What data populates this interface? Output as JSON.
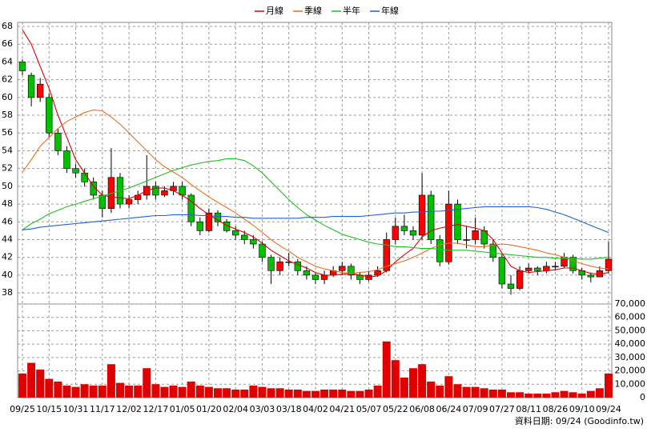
{
  "chart_data": {
    "type": "candlestick",
    "categories": [
      "09/25",
      null,
      null,
      "10/15",
      null,
      null,
      "10/31",
      null,
      null,
      "11/17",
      null,
      null,
      "12/02",
      null,
      null,
      "12/17",
      null,
      null,
      "01/05",
      null,
      null,
      "01/20",
      null,
      null,
      "02/04",
      null,
      null,
      "03/03",
      null,
      null,
      "03/18",
      null,
      null,
      "04/02",
      null,
      null,
      "04/21",
      null,
      null,
      "05/07",
      null,
      null,
      "05/22",
      null,
      null,
      "06/08",
      null,
      null,
      "06/24",
      null,
      null,
      "07/09",
      null,
      null,
      "07/27",
      null,
      null,
      "08/11",
      null,
      null,
      "08/26",
      null,
      null,
      "09/10",
      null,
      null,
      "09/24"
    ],
    "open": [
      64,
      62.5,
      60,
      60,
      56,
      54,
      52,
      51.5,
      50.5,
      49,
      47.5,
      51,
      48,
      48.5,
      49,
      50,
      49,
      49.5,
      50,
      49,
      46,
      45,
      47,
      46,
      45,
      44.5,
      44,
      43.5,
      42,
      40.5,
      41.5,
      41.5,
      40.5,
      40,
      39.5,
      40,
      40.5,
      41,
      40,
      39.5,
      40,
      40.5,
      44,
      45.5,
      45,
      44.5,
      49,
      44,
      41.5,
      48,
      44,
      44,
      45,
      43.5,
      42,
      39,
      38.5,
      40.5,
      40.8,
      40.5,
      41,
      41,
      42,
      40.5,
      40,
      39.8,
      40.5
    ],
    "high": [
      64.3,
      62.8,
      62.2,
      60.5,
      56.5,
      54.5,
      52.5,
      52,
      51,
      49.5,
      54.3,
      51.5,
      49,
      49.5,
      53.5,
      50.5,
      50,
      50.5,
      50.5,
      49.2,
      46.5,
      47.5,
      47.3,
      46.3,
      45.5,
      45,
      44.5,
      43.8,
      42.3,
      42,
      42.5,
      41.8,
      41,
      40.3,
      40.5,
      41,
      41.5,
      41.3,
      40.3,
      40.5,
      41,
      44.8,
      46.5,
      46.8,
      45.5,
      51.5,
      49.5,
      44.5,
      49.5,
      48.5,
      45.5,
      46.5,
      45.5,
      44,
      42.5,
      40,
      41,
      41.3,
      41,
      41.5,
      41.5,
      42.5,
      42.3,
      40.8,
      40.3,
      41,
      43.8
    ],
    "low": [
      62.5,
      59,
      59.5,
      55.5,
      53.5,
      51.5,
      51,
      50,
      48.5,
      46.5,
      47,
      47.5,
      47.5,
      48,
      48.5,
      48.5,
      48.8,
      49,
      48.5,
      45.5,
      44.5,
      44.8,
      45.5,
      44.8,
      44,
      43.5,
      43,
      41.5,
      39,
      40,
      41,
      40,
      39.5,
      39,
      39,
      39.8,
      40,
      39.5,
      39,
      39.3,
      39.8,
      40.3,
      43.5,
      44.5,
      44,
      44,
      43.5,
      41,
      41.2,
      43.5,
      43,
      43.5,
      43,
      41.5,
      38.5,
      37.8,
      38.3,
      40.2,
      40,
      40.2,
      40.5,
      40.8,
      40.2,
      39.5,
      39.2,
      39.8,
      40.2
    ],
    "close": [
      63,
      60,
      61.5,
      56,
      54,
      52,
      51.5,
      50.5,
      49,
      47.5,
      51,
      48,
      48.5,
      49,
      50,
      49,
      49.5,
      50,
      49,
      46,
      45,
      47,
      46,
      45,
      44.5,
      44,
      43.5,
      42,
      40.5,
      41.5,
      41.5,
      40.5,
      40,
      39.5,
      40,
      40.5,
      41,
      40,
      39.5,
      40,
      40.5,
      44,
      45.5,
      45,
      44.5,
      49,
      44,
      41.5,
      48,
      44,
      44,
      45,
      43.5,
      42,
      39,
      38.5,
      40.5,
      40.8,
      40.5,
      41,
      41,
      42,
      40.5,
      40,
      39.8,
      40.5,
      41.8
    ],
    "volume": [
      18000,
      26000,
      21000,
      14000,
      12000,
      9000,
      8000,
      10000,
      9000,
      9000,
      25000,
      11000,
      9000,
      9000,
      22000,
      10000,
      8000,
      9000,
      8000,
      12000,
      9000,
      8000,
      7000,
      7000,
      6000,
      6000,
      9000,
      8000,
      7000,
      7000,
      6000,
      6000,
      5000,
      5000,
      6000,
      6000,
      6000,
      5000,
      5000,
      6000,
      9000,
      42000,
      28000,
      15000,
      22000,
      25000,
      12000,
      9000,
      16000,
      10000,
      8000,
      8000,
      7000,
      6000,
      6000,
      4000,
      4000,
      3000,
      3000,
      3000,
      4000,
      5000,
      4000,
      3000,
      5000,
      7000,
      18000
    ],
    "series": [
      {
        "name": "月線",
        "color": "#e00000",
        "values": [
          67.6,
          66,
          63.5,
          61,
          58,
          55.5,
          53,
          51.5,
          50,
          49,
          48.8,
          48.7,
          48.6,
          49,
          49.5,
          49.8,
          49.8,
          49.5,
          49,
          48.3,
          47.5,
          46.8,
          46.2,
          45.6,
          45.2,
          44.8,
          44.3,
          43.6,
          42.8,
          42.2,
          41.6,
          41.2,
          40.8,
          40.3,
          40,
          40,
          40.1,
          40.2,
          40,
          39.8,
          39.9,
          40.5,
          41.5,
          42.3,
          43,
          44.3,
          45,
          45.3,
          45.5,
          45.7,
          45.5,
          45.3,
          45,
          44,
          42.5,
          41,
          40.5,
          40.3,
          40.4,
          40.5,
          40.6,
          40.8,
          40.8,
          40.5,
          40.2,
          40.1,
          40.3
        ]
      },
      {
        "name": "季線",
        "color": "#e87020",
        "values": [
          51.6,
          53,
          54.5,
          55.5,
          56.5,
          57.3,
          57.8,
          58.3,
          58.6,
          58.5,
          57.8,
          57,
          56,
          55,
          54,
          53,
          52.2,
          51.6,
          51,
          50.2,
          49.5,
          48.8,
          48.2,
          47.6,
          47,
          46.3,
          45.6,
          44.8,
          44,
          43.3,
          42.7,
          42,
          41.5,
          41,
          40.7,
          40.5,
          40.3,
          40.2,
          40.3,
          40.4,
          40.6,
          41,
          41.3,
          41.6,
          42,
          42.5,
          43,
          43.4,
          43.6,
          43.6,
          43.4,
          43.2,
          43.2,
          43.4,
          43.5,
          43.4,
          43.2,
          43,
          42.8,
          42.5,
          42.3,
          42,
          41.6,
          41.3,
          41,
          40.8,
          40.7
        ]
      },
      {
        "name": "半年",
        "color": "#20c020",
        "values": [
          45.1,
          45.8,
          46.3,
          46.9,
          47.3,
          47.7,
          48,
          48.3,
          48.6,
          48.9,
          49.2,
          49.5,
          49.8,
          50.2,
          50.6,
          51,
          51.4,
          51.8,
          52.1,
          52.4,
          52.6,
          52.8,
          52.9,
          53.1,
          53.1,
          52.9,
          52.3,
          51.5,
          50.5,
          49.5,
          48.5,
          47.6,
          46.8,
          46.2,
          45.6,
          45.1,
          44.6,
          44.3,
          44,
          43.7,
          43.5,
          43.4,
          43.2,
          43.2,
          43.1,
          43,
          43,
          42.9,
          42.8,
          42.8,
          42.8,
          42.7,
          42.6,
          42.5,
          42.4,
          42.3,
          42.2,
          42.1,
          42,
          42,
          41.9,
          41.9,
          41.9,
          41.8,
          41.8,
          41.9,
          42
        ]
      },
      {
        "name": "年線",
        "color": "#2060d0",
        "values": [
          45.1,
          45.2,
          45.4,
          45.5,
          45.6,
          45.7,
          45.8,
          45.9,
          46,
          46.1,
          46.2,
          46.3,
          46.4,
          46.5,
          46.6,
          46.7,
          46.7,
          46.8,
          46.8,
          46.8,
          46.7,
          46.7,
          46.6,
          46.6,
          46.5,
          46.5,
          46.4,
          46.4,
          46.4,
          46.4,
          46.4,
          46.4,
          46.5,
          46.5,
          46.5,
          46.6,
          46.6,
          46.6,
          46.6,
          46.7,
          46.8,
          46.9,
          47,
          47,
          47.1,
          47.1,
          47.2,
          47.2,
          47.3,
          47.4,
          47.5,
          47.6,
          47.7,
          47.7,
          47.7,
          47.7,
          47.7,
          47.7,
          47.6,
          47.4,
          47.1,
          46.8,
          46.4,
          46,
          45.6,
          45.2,
          44.8
        ]
      }
    ],
    "ylim": [
      36.75,
      68.45
    ],
    "yticks": [
      38,
      40,
      42,
      44,
      46,
      48,
      50,
      52,
      54,
      56,
      58,
      60,
      62,
      64,
      66,
      68
    ],
    "y2lim": [
      0,
      70000
    ],
    "y2ticks": [
      0,
      {
        "value": 10000,
        "label": "10,000"
      },
      {
        "value": 20000,
        "label": "20,000"
      },
      {
        "value": 30000,
        "label": "30,000"
      },
      {
        "value": 40000,
        "label": "40,000"
      },
      {
        "value": 50000,
        "label": "50,000"
      },
      {
        "value": 60000,
        "label": "60,000"
      },
      {
        "value": 70000,
        "label": "70,000"
      }
    ],
    "up_color": "#ff0000",
    "down_color": "#00c000",
    "volume_color": "#e00000",
    "grid": true,
    "footer": "資料日期: 09/24 (Goodinfo.tw)"
  }
}
